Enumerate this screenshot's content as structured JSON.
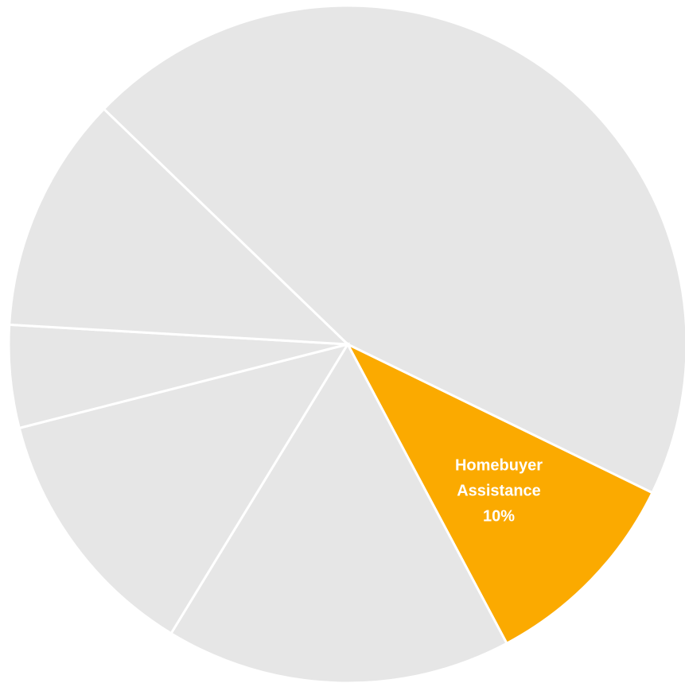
{
  "chart_data": {
    "type": "pie",
    "title": "",
    "slices": [
      {
        "label": "",
        "value": 45.0,
        "color": "#e6e6e6",
        "highlighted": false
      },
      {
        "label": "Homebuyer Assistance",
        "value": 10.0,
        "value_label": "10%",
        "color": "#fbaa00",
        "highlighted": true
      },
      {
        "label": "",
        "value": 16.5,
        "color": "#e6e6e6",
        "highlighted": false
      },
      {
        "label": "",
        "value": 12.3,
        "color": "#e6e6e6",
        "highlighted": false
      },
      {
        "label": "",
        "value": 4.9,
        "color": "#e6e6e6",
        "highlighted": false
      },
      {
        "label": "",
        "value": 11.3,
        "color": "#e6e6e6",
        "highlighted": false
      }
    ],
    "start_angle_deg": 314,
    "direction": "clockwise",
    "legend": "none",
    "separator_color": "#ffffff"
  }
}
